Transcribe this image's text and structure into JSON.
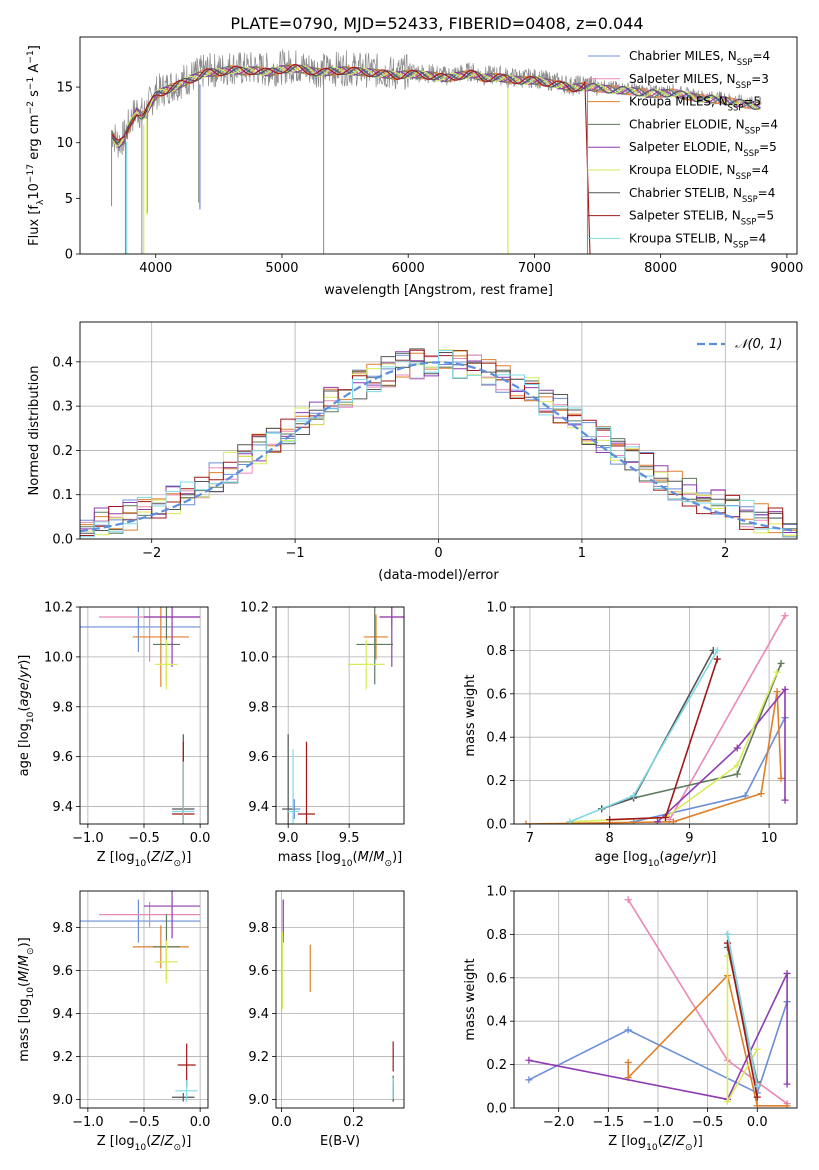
{
  "title": "PLATE=0790, MJD=52433, FIBERID=0408, z=0.044",
  "colors": {
    "ChabrierMILES": "#6a8fd8",
    "SalpeterMILES": "#e889b8",
    "KroupaMILES": "#e07f2a",
    "ChabrierELODIE": "#5d7a5d",
    "SalpeterELODIE": "#8e3db0",
    "KroupaELODIE": "#d9ea5a",
    "ChabrierSTELIB": "#555555",
    "SalpeterSTELIB": "#a01818",
    "KroupaSTELIB": "#7fd9e6",
    "normal": "#5b8ede"
  },
  "chart_data": [
    {
      "id": "spectrum",
      "type": "line",
      "xlabel": "wavelength [Angstrom, rest frame]",
      "ylabel": "Flux [f_λ 10^-17 erg cm^-2 s^-1 A^-1]",
      "xlim": [
        3400,
        9080
      ],
      "ylim": [
        0,
        19.5
      ],
      "xticks": [
        4000,
        5000,
        6000,
        7000,
        8000,
        9000
      ],
      "yticks": [
        0,
        5,
        10,
        15
      ],
      "legend_position": "right",
      "legend": [
        {
          "key": "ChabrierMILES",
          "label": "Chabrier MILES, N",
          "sub": "SSP",
          "suffix": "=4"
        },
        {
          "key": "SalpeterMILES",
          "label": "Salpeter MILES, N",
          "sub": "SSP",
          "suffix": "=3"
        },
        {
          "key": "KroupaMILES",
          "label": "Kroupa MILES, N",
          "sub": "SSP",
          "suffix": "=5"
        },
        {
          "key": "ChabrierELODIE",
          "label": "Chabrier ELODIE, N",
          "sub": "SSP",
          "suffix": "=4"
        },
        {
          "key": "SalpeterELODIE",
          "label": "Salpeter ELODIE, N",
          "sub": "SSP",
          "suffix": "=5"
        },
        {
          "key": "KroupaELODIE",
          "label": "Kroupa ELODIE, N",
          "sub": "SSP",
          "suffix": "=4"
        },
        {
          "key": "ChabrierSTELIB",
          "label": "Chabrier STELIB, N",
          "sub": "SSP",
          "suffix": "=4"
        },
        {
          "key": "SalpeterSTELIB",
          "label": "Salpeter STELIB, N",
          "sub": "SSP",
          "suffix": "=5"
        },
        {
          "key": "KroupaSTELIB",
          "label": "Kroupa STELIB, N",
          "sub": "SSP",
          "suffix": "=4"
        }
      ],
      "data_curve": {
        "x": [
          3650,
          3700,
          3750,
          3800,
          3850,
          3900,
          3950,
          4000,
          4100,
          4200,
          4300,
          4400,
          4500,
          4600,
          4700,
          4800,
          4900,
          5000,
          5100,
          5200,
          5300,
          5400,
          5500,
          5600,
          5700,
          5800,
          5900,
          6000,
          6100,
          6200,
          6300,
          6400,
          6500,
          6600,
          6700,
          6800,
          6900,
          7000,
          7100,
          7200,
          7300,
          7400,
          7500,
          7600,
          7700,
          7800,
          7900,
          8000,
          8100,
          8200,
          8300,
          8400,
          8500,
          8600,
          8700,
          8800
        ],
        "y": [
          11,
          10,
          10.5,
          12,
          13,
          12.5,
          13.5,
          14.5,
          15,
          15.5,
          16,
          16.5,
          16.5,
          16.8,
          16.6,
          16.7,
          16.5,
          16.8,
          16.9,
          16.7,
          16.5,
          16.6,
          16.7,
          16.6,
          16.5,
          16.4,
          16.2,
          16.4,
          16.3,
          16.2,
          16.0,
          16.2,
          16.4,
          16.0,
          16.1,
          15.9,
          15.8,
          15.8,
          15.6,
          15.4,
          15.1,
          15.3,
          15.1,
          15.0,
          14.9,
          14.8,
          14.6,
          14.6,
          14.7,
          14.4,
          14.2,
          14.1,
          14.0,
          13.8,
          13.6,
          13.5
        ]
      },
      "absorption_lines": [
        {
          "x": 3650,
          "y": 4.3
        },
        {
          "x": 3760,
          "y": 0
        },
        {
          "x": 3890,
          "y": 0
        },
        {
          "x": 3935,
          "y": 3.7
        },
        {
          "x": 4340,
          "y": 4.6
        },
        {
          "x": 5330,
          "y": 0
        },
        {
          "x": 6790,
          "y": 0
        },
        {
          "x": 7420,
          "y": 0
        }
      ],
      "model_drop": {
        "series": "SalpeterSTELIB",
        "x": [
          7400,
          7440
        ],
        "y": [
          15.5,
          0
        ]
      }
    },
    {
      "id": "residual_histogram",
      "type": "step",
      "xlabel": "(data-model)/error",
      "ylabel": "Normed distribution",
      "xlim": [
        -2.5,
        2.5
      ],
      "ylim": [
        0,
        0.49
      ],
      "xticks": [
        -2,
        -1,
        0,
        1,
        2
      ],
      "yticks": [
        0.0,
        0.1,
        0.2,
        0.3,
        0.4
      ],
      "legend_position": "top-right",
      "legend_label": "𝒩(0, 1)",
      "bin_width": 0.1,
      "bin_start": -2.5
    },
    {
      "id": "age_vs_Z",
      "type": "errorbar",
      "xlabel": "Z [log10(Z/Z⊙)]",
      "ylabel": "age [log10(age/yr)]",
      "xlim": [
        -1.07,
        0.07
      ],
      "ylim": [
        9.33,
        10.2
      ],
      "xticks": [
        -1.0,
        -0.5,
        0.0
      ],
      "yticks": [
        9.4,
        9.6,
        9.8,
        10.0,
        10.2
      ],
      "points": [
        {
          "s": "ChabrierMILES",
          "x": -0.55,
          "y": 10.12,
          "xe": 0.55,
          "ye": 0.1
        },
        {
          "s": "SalpeterMILES",
          "x": -0.45,
          "y": 10.16,
          "xe": 0.45,
          "ye": 0.18
        },
        {
          "s": "KroupaMILES",
          "x": -0.35,
          "y": 10.08,
          "xe": 0.25,
          "ye": 0.2
        },
        {
          "s": "ChabrierELODIE",
          "x": -0.3,
          "y": 10.05,
          "xe": 0.12,
          "ye": 0.16
        },
        {
          "s": "SalpeterELODIE",
          "x": -0.25,
          "y": 10.16,
          "xe": 0.25,
          "ye": 0.2
        },
        {
          "s": "KroupaELODIE",
          "x": -0.3,
          "y": 9.97,
          "xe": 0.1,
          "ye": 0.1
        },
        {
          "s": "ChabrierSTELIB",
          "x": -0.15,
          "y": 9.39,
          "xe": 0.1,
          "ye": 0.3
        },
        {
          "s": "SalpeterSTELIB",
          "x": -0.15,
          "y": 9.37,
          "xe": 0.1,
          "ye": 0.29
        },
        {
          "s": "KroupaSTELIB",
          "x": -0.15,
          "y": 9.38,
          "xe": 0.1,
          "ye": 0.2
        }
      ]
    },
    {
      "id": "age_vs_mass",
      "type": "errorbar",
      "xlabel": "mass [log10(M/M⊙)]",
      "ylabel": "",
      "xlim": [
        8.9,
        9.95
      ],
      "ylim": [
        9.33,
        10.2
      ],
      "xticks": [
        9.0,
        9.5
      ],
      "yticks": [
        9.4,
        9.6,
        9.8,
        10.0,
        10.2
      ],
      "points": [
        {
          "s": "ChabrierMILES",
          "x": 9.05,
          "y": 9.39,
          "xe": 0.05,
          "ye": 0.04
        },
        {
          "s": "SalpeterMILES",
          "x": 9.85,
          "y": 10.16,
          "xe": 0.1,
          "ye": 0.04
        },
        {
          "s": "KroupaMILES",
          "x": 9.72,
          "y": 10.08,
          "xe": 0.1,
          "ye": 0.09
        },
        {
          "s": "ChabrierELODIE",
          "x": 9.71,
          "y": 10.05,
          "xe": 0.15,
          "ye": 0.16
        },
        {
          "s": "SalpeterELODIE",
          "x": 9.85,
          "y": 10.16,
          "xe": 0.1,
          "ye": 0.2
        },
        {
          "s": "KroupaELODIE",
          "x": 9.64,
          "y": 9.97,
          "xe": 0.15,
          "ye": 0.1
        },
        {
          "s": "ChabrierSTELIB",
          "x": 9.0,
          "y": 9.39,
          "xe": 0.05,
          "ye": 0.3
        },
        {
          "s": "SalpeterSTELIB",
          "x": 9.15,
          "y": 9.37,
          "xe": 0.07,
          "ye": 0.29
        },
        {
          "s": "KroupaSTELIB",
          "x": 9.04,
          "y": 9.38,
          "xe": 0.05,
          "ye": 0.25
        }
      ]
    },
    {
      "id": "mass_weight_vs_age",
      "type": "line",
      "xlabel": "age [log10(age/yr)]",
      "ylabel": "mass weight",
      "xlim": [
        6.8,
        10.35
      ],
      "ylim": [
        0,
        1.0
      ],
      "xticks": [
        7,
        8,
        9,
        10
      ],
      "yticks": [
        0.0,
        0.2,
        0.4,
        0.6,
        0.8,
        1.0
      ],
      "series": [
        {
          "s": "ChabrierMILES",
          "x": [
            8.3,
            9.7,
            10.2
          ],
          "y": [
            0.01,
            0.13,
            0.49
          ]
        },
        {
          "s": "SalpeterMILES",
          "x": [
            8.75,
            10.2
          ],
          "y": [
            0.02,
            0.96
          ]
        },
        {
          "s": "KroupaMILES",
          "x": [
            6.95,
            8.8,
            9.9,
            10.1,
            10.15
          ],
          "y": [
            0.0,
            0.01,
            0.14,
            0.61,
            0.21
          ]
        },
        {
          "s": "ChabrierELODIE",
          "x": [
            7.9,
            8.3,
            9.6,
            10.15
          ],
          "y": [
            0.07,
            0.12,
            0.23,
            0.74
          ]
        },
        {
          "s": "SalpeterELODIE",
          "x": [
            8.6,
            9.6,
            10.2,
            10.2
          ],
          "y": [
            0.01,
            0.35,
            0.62,
            0.11
          ]
        },
        {
          "s": "KroupaELODIE",
          "x": [
            7.5,
            8.7,
            9.6,
            10.1
          ],
          "y": [
            0.01,
            0.03,
            0.27,
            0.7
          ]
        },
        {
          "s": "ChabrierSTELIB",
          "x": [
            7.9,
            8.3,
            9.3
          ],
          "y": [
            0.07,
            0.12,
            0.8
          ]
        },
        {
          "s": "SalpeterSTELIB",
          "x": [
            8.0,
            8.7,
            9.35
          ],
          "y": [
            0.02,
            0.03,
            0.76
          ]
        },
        {
          "s": "KroupaSTELIB",
          "x": [
            7.5,
            8.3,
            9.35
          ],
          "y": [
            0.01,
            0.13,
            0.8
          ]
        }
      ]
    },
    {
      "id": "mass_vs_Z",
      "type": "errorbar",
      "xlabel": "Z [log10(Z/Z⊙)]",
      "ylabel": "mass [log10(M/M⊙)]",
      "xlim": [
        -1.07,
        0.07
      ],
      "ylim": [
        8.96,
        9.97
      ],
      "xticks": [
        -1.0,
        -0.5,
        0.0
      ],
      "yticks": [
        9.0,
        9.2,
        9.4,
        9.6,
        9.8
      ],
      "points": [
        {
          "s": "ChabrierMILES",
          "x": -0.55,
          "y": 9.83,
          "xe": 0.55,
          "ye": 0.1
        },
        {
          "s": "SalpeterMILES",
          "x": -0.45,
          "y": 9.86,
          "xe": 0.45,
          "ye": 0.06
        },
        {
          "s": "KroupaMILES",
          "x": -0.35,
          "y": 9.71,
          "xe": 0.25,
          "ye": 0.1
        },
        {
          "s": "ChabrierELODIE",
          "x": -0.3,
          "y": 9.71,
          "xe": 0.12,
          "ye": 0.15
        },
        {
          "s": "SalpeterELODIE",
          "x": -0.25,
          "y": 9.9,
          "xe": 0.25,
          "ye": 0.15
        },
        {
          "s": "KroupaELODIE",
          "x": -0.3,
          "y": 9.64,
          "xe": 0.1,
          "ye": 0.1
        },
        {
          "s": "ChabrierSTELIB",
          "x": -0.15,
          "y": 9.01,
          "xe": 0.1,
          "ye": 0.02
        },
        {
          "s": "SalpeterSTELIB",
          "x": -0.12,
          "y": 9.16,
          "xe": 0.08,
          "ye": 0.1
        },
        {
          "s": "KroupaSTELIB",
          "x": -0.12,
          "y": 9.04,
          "xe": 0.1,
          "ye": 0.05
        }
      ]
    },
    {
      "id": "mass_vs_EBV",
      "type": "errorbar",
      "xlabel": "E(B-V)",
      "ylabel": "",
      "xlim": [
        -0.015,
        0.34
      ],
      "ylim": [
        8.96,
        9.97
      ],
      "xticks": [
        0.0,
        0.2
      ],
      "yticks": [
        9.0,
        9.2,
        9.4,
        9.6,
        9.8
      ],
      "points": [
        {
          "s": "ChabrierMILES",
          "x": 0.31,
          "y": 9.05,
          "xe": 0,
          "ye": 0.06
        },
        {
          "s": "SalpeterMILES",
          "x": 0.005,
          "y": 9.85,
          "xe": 0,
          "ye": 0.08
        },
        {
          "s": "KroupaMILES",
          "x": 0.08,
          "y": 9.61,
          "xe": 0,
          "ye": 0.11
        },
        {
          "s": "ChabrierELODIE",
          "x": 0.31,
          "y": 9.05,
          "xe": 0,
          "ye": 0.06
        },
        {
          "s": "SalpeterELODIE",
          "x": 0.005,
          "y": 9.83,
          "xe": 0,
          "ye": 0.1
        },
        {
          "s": "KroupaELODIE",
          "x": 0.003,
          "y": 9.6,
          "xe": 0,
          "ye": 0.18
        },
        {
          "s": "ChabrierSTELIB",
          "x": 0.31,
          "y": 9.03,
          "xe": 0,
          "ye": 0.04
        },
        {
          "s": "SalpeterSTELIB",
          "x": 0.31,
          "y": 9.2,
          "xe": 0,
          "ye": 0.07
        },
        {
          "s": "KroupaSTELIB",
          "x": 0.31,
          "y": 9.05,
          "xe": 0,
          "ye": 0.05
        }
      ]
    },
    {
      "id": "mass_weight_vs_Z",
      "type": "line",
      "xlabel": "Z [log10(Z/Z⊙)]",
      "ylabel": "mass weight",
      "xlim": [
        -2.45,
        0.4
      ],
      "ylim": [
        0,
        1.0
      ],
      "xticks": [
        -2.0,
        -1.5,
        -1.0,
        -0.5,
        0.0
      ],
      "yticks": [
        0.0,
        0.2,
        0.4,
        0.6,
        0.8,
        1.0
      ],
      "series": [
        {
          "s": "ChabrierMILES",
          "x": [
            -2.3,
            -1.3,
            0.0,
            0.3
          ],
          "y": [
            0.13,
            0.36,
            0.07,
            0.49
          ]
        },
        {
          "s": "SalpeterMILES",
          "x": [
            -1.3,
            -0.3,
            0.3
          ],
          "y": [
            0.96,
            0.22,
            0.02
          ]
        },
        {
          "s": "KroupaMILES",
          "x": [
            -1.3,
            -1.3,
            -0.3,
            0.0,
            0.3
          ],
          "y": [
            0.21,
            0.14,
            0.61,
            0.01,
            0.01
          ]
        },
        {
          "s": "ChabrierELODIE",
          "x": [
            -0.3,
            0.0
          ],
          "y": [
            0.74,
            0.12
          ]
        },
        {
          "s": "SalpeterELODIE",
          "x": [
            -2.3,
            -0.3,
            0.3,
            0.3
          ],
          "y": [
            0.22,
            0.04,
            0.62,
            0.11
          ]
        },
        {
          "s": "KroupaELODIE",
          "x": [
            -0.3,
            -0.3,
            0.0
          ],
          "y": [
            0.7,
            0.03,
            0.27
          ]
        },
        {
          "s": "ChabrierSTELIB",
          "x": [
            -0.3,
            0.0
          ],
          "y": [
            0.8,
            0.1
          ]
        },
        {
          "s": "SalpeterSTELIB",
          "x": [
            -0.3,
            0.0
          ],
          "y": [
            0.76,
            0.05
          ]
        },
        {
          "s": "KroupaSTELIB",
          "x": [
            -0.3,
            0.0
          ],
          "y": [
            0.8,
            0.1
          ]
        }
      ]
    }
  ]
}
